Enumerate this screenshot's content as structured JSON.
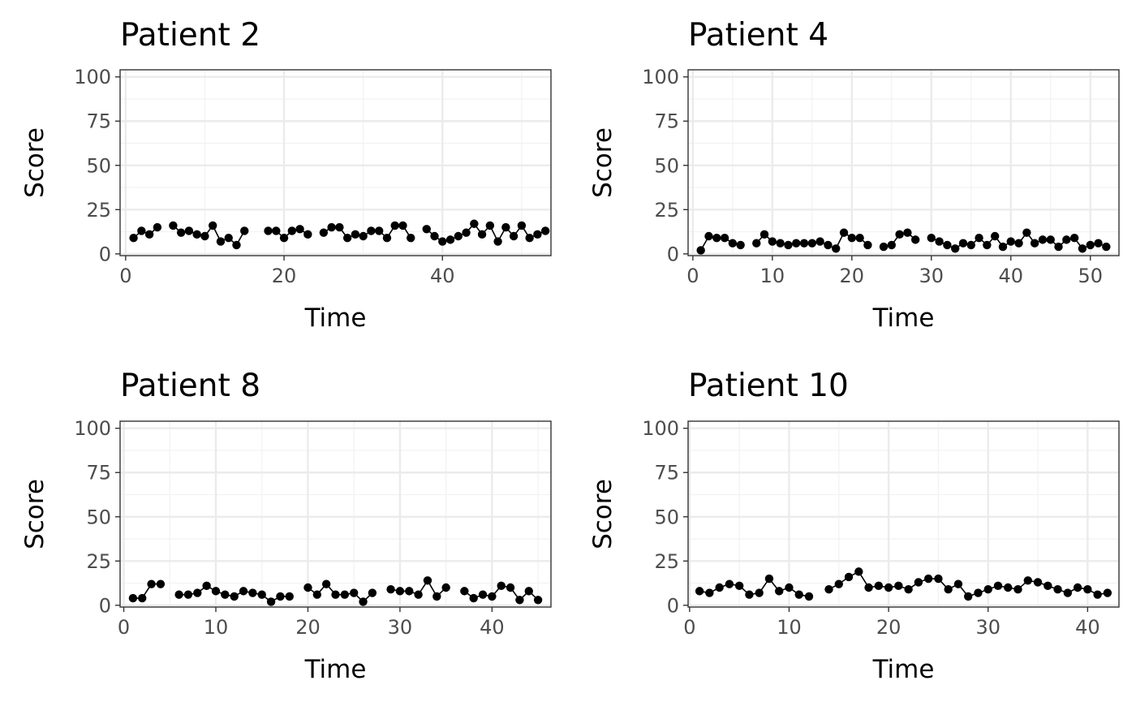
{
  "chart_data": [
    {
      "type": "line",
      "title": "Patient 2",
      "xlabel": "Time",
      "ylabel": "Score",
      "xlim": [
        -0.7,
        53.7
      ],
      "ylim": [
        -1,
        104
      ],
      "xticks": [
        0,
        20,
        40
      ],
      "yticks": [
        0,
        25,
        50,
        75,
        100
      ],
      "tick_labels_x": [
        "0",
        "20",
        "40"
      ],
      "tick_labels_y": [
        "0",
        "25",
        "50",
        "75",
        "100"
      ],
      "grid": true,
      "x": [
        1,
        2,
        3,
        4,
        5,
        6,
        7,
        8,
        9,
        10,
        11,
        12,
        13,
        14,
        15,
        16,
        17,
        18,
        19,
        20,
        21,
        22,
        23,
        24,
        25,
        26,
        27,
        28,
        29,
        30,
        31,
        32,
        33,
        34,
        35,
        36,
        37,
        38,
        39,
        40,
        41,
        42,
        43,
        44,
        45,
        46,
        47,
        48,
        49,
        50,
        51,
        52,
        53
      ],
      "y": [
        9,
        13,
        11,
        15,
        null,
        16,
        12,
        13,
        11,
        10,
        16,
        7,
        9,
        5,
        13,
        null,
        null,
        13,
        13,
        9,
        13,
        14,
        11,
        null,
        12,
        15,
        15,
        9,
        11,
        10,
        13,
        13,
        9,
        16,
        16,
        9,
        null,
        14,
        10,
        7,
        8,
        10,
        12,
        17,
        11,
        16,
        7,
        15,
        10,
        16,
        9,
        11,
        13
      ]
    },
    {
      "type": "line",
      "title": "Patient 4",
      "xlabel": "Time",
      "ylabel": "Score",
      "xlim": [
        -0.6,
        53.6
      ],
      "ylim": [
        -1,
        104
      ],
      "xticks": [
        0,
        10,
        20,
        30,
        40,
        50
      ],
      "yticks": [
        0,
        25,
        50,
        75,
        100
      ],
      "tick_labels_x": [
        "0",
        "10",
        "20",
        "30",
        "40",
        "50"
      ],
      "tick_labels_y": [
        "0",
        "25",
        "50",
        "75",
        "100"
      ],
      "grid": true,
      "x": [
        1,
        2,
        3,
        4,
        5,
        6,
        7,
        8,
        9,
        10,
        11,
        12,
        13,
        14,
        15,
        16,
        17,
        18,
        19,
        20,
        21,
        22,
        23,
        24,
        25,
        26,
        27,
        28,
        29,
        30,
        31,
        32,
        33,
        34,
        35,
        36,
        37,
        38,
        39,
        40,
        41,
        42,
        43,
        44,
        45,
        46,
        47,
        48,
        49,
        50,
        51,
        52
      ],
      "y": [
        2,
        10,
        9,
        9,
        6,
        5,
        null,
        6,
        11,
        7,
        6,
        5,
        6,
        6,
        6,
        7,
        5,
        3,
        12,
        9,
        9,
        5,
        null,
        4,
        5,
        11,
        12,
        8,
        null,
        9,
        7,
        5,
        3,
        6,
        5,
        9,
        5,
        10,
        4,
        7,
        6,
        12,
        6,
        8,
        8,
        4,
        8,
        9,
        3,
        5,
        6,
        4
      ]
    },
    {
      "type": "line",
      "title": "Patient 8",
      "xlabel": "Time",
      "ylabel": "Score",
      "xlim": [
        -0.4,
        46.4
      ],
      "ylim": [
        -1,
        104
      ],
      "xticks": [
        0,
        10,
        20,
        30,
        40
      ],
      "yticks": [
        0,
        25,
        50,
        75,
        100
      ],
      "tick_labels_x": [
        "0",
        "10",
        "20",
        "30",
        "40"
      ],
      "tick_labels_y": [
        "0",
        "25",
        "50",
        "75",
        "100"
      ],
      "grid": true,
      "x": [
        1,
        2,
        3,
        4,
        5,
        6,
        7,
        8,
        9,
        10,
        11,
        12,
        13,
        14,
        15,
        16,
        17,
        18,
        19,
        20,
        21,
        22,
        23,
        24,
        25,
        26,
        27,
        28,
        29,
        30,
        31,
        32,
        33,
        34,
        35,
        36,
        37,
        38,
        39,
        40,
        41,
        42,
        43,
        44,
        45
      ],
      "y": [
        4,
        4,
        12,
        12,
        null,
        6,
        6,
        7,
        11,
        8,
        6,
        5,
        8,
        7,
        6,
        2,
        5,
        5,
        null,
        10,
        6,
        12,
        6,
        6,
        7,
        2,
        7,
        null,
        9,
        8,
        8,
        6,
        14,
        5,
        10,
        null,
        8,
        4,
        6,
        5,
        11,
        10,
        3,
        8,
        3
      ]
    },
    {
      "type": "line",
      "title": "Patient 10",
      "xlabel": "Time",
      "ylabel": "Score",
      "xlim": [
        -0.15,
        43.15
      ],
      "ylim": [
        -1,
        104
      ],
      "xticks": [
        0,
        10,
        20,
        30,
        40
      ],
      "yticks": [
        0,
        25,
        50,
        75,
        100
      ],
      "tick_labels_x": [
        "0",
        "10",
        "20",
        "30",
        "40"
      ],
      "tick_labels_y": [
        "0",
        "25",
        "50",
        "75",
        "100"
      ],
      "grid": true,
      "x": [
        1,
        2,
        3,
        4,
        5,
        6,
        7,
        8,
        9,
        10,
        11,
        12,
        13,
        14,
        15,
        16,
        17,
        18,
        19,
        20,
        21,
        22,
        23,
        24,
        25,
        26,
        27,
        28,
        29,
        30,
        31,
        32,
        33,
        34,
        35,
        36,
        37,
        38,
        39,
        40,
        41,
        42
      ],
      "y": [
        8,
        7,
        10,
        12,
        11,
        6,
        7,
        15,
        8,
        10,
        6,
        5,
        null,
        9,
        12,
        16,
        19,
        10,
        11,
        10,
        11,
        9,
        13,
        15,
        15,
        9,
        12,
        5,
        7,
        9,
        11,
        10,
        9,
        14,
        13,
        11,
        9,
        7,
        10,
        9,
        6,
        7
      ]
    }
  ]
}
